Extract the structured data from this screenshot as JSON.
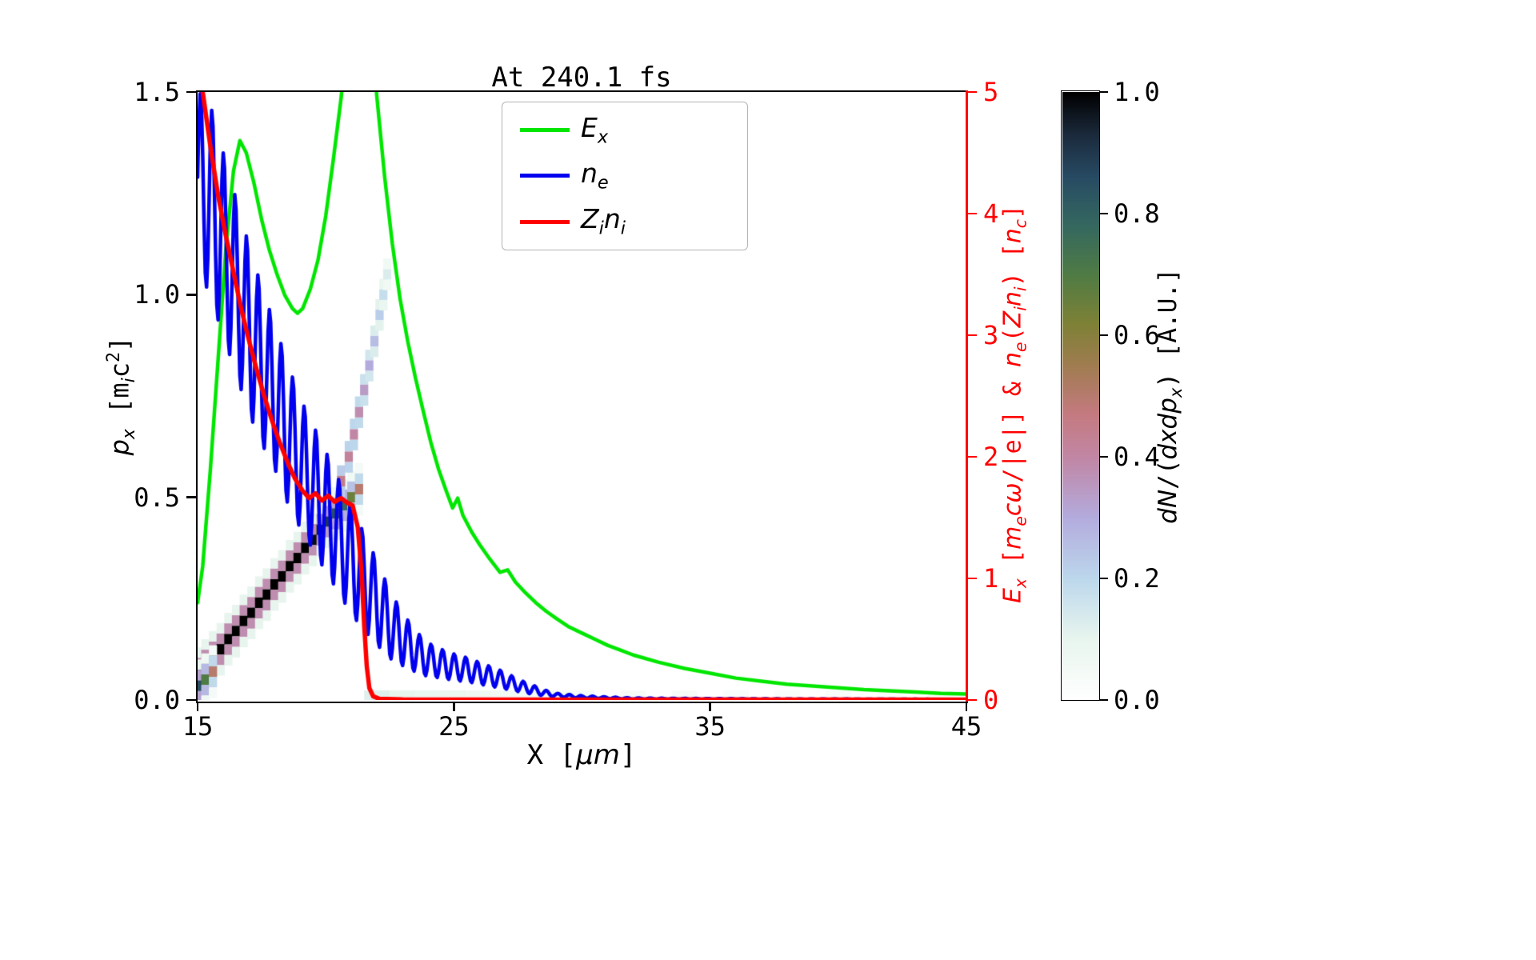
{
  "title": "At 240.1 fs",
  "axes": {
    "x": {
      "label_rich": [
        {
          "t": "X [",
          "s": ""
        },
        {
          "t": "μm",
          "s": "i"
        },
        {
          "t": "]",
          "s": ""
        }
      ],
      "ticks": [
        "15",
        "25",
        "35",
        "45"
      ],
      "tick_values": [
        15,
        25,
        35,
        45
      ],
      "lim": [
        15,
        45
      ]
    },
    "left": {
      "label_rich": [
        {
          "t": "p",
          "s": "i"
        },
        {
          "t": "x",
          "s": "subi"
        },
        {
          "t": " [m",
          "s": ""
        },
        {
          "t": "i",
          "s": "subi"
        },
        {
          "t": "c",
          "s": ""
        },
        {
          "t": "2",
          "s": "sup"
        },
        {
          "t": "]",
          "s": ""
        }
      ],
      "ticks": [
        "0.0",
        "0.5",
        "1.0",
        "1.5"
      ],
      "tick_values": [
        0,
        0.5,
        1,
        1.5
      ],
      "lim": [
        0,
        1.5
      ]
    },
    "right": {
      "color": "#ff0000",
      "label_rich": [
        {
          "t": "E",
          "s": "i"
        },
        {
          "t": "x",
          "s": "subi"
        },
        {
          "t": " [",
          "s": ""
        },
        {
          "t": "m",
          "s": "i"
        },
        {
          "t": "e",
          "s": "subi"
        },
        {
          "t": "c",
          "s": "i"
        },
        {
          "t": "ω",
          "s": "i"
        },
        {
          "t": "/|e|] & ",
          "s": ""
        },
        {
          "t": "n",
          "s": "i"
        },
        {
          "t": "e",
          "s": "subi"
        },
        {
          "t": "(",
          "s": ""
        },
        {
          "t": "Z",
          "s": "i"
        },
        {
          "t": "i",
          "s": "subi"
        },
        {
          "t": "n",
          "s": "i"
        },
        {
          "t": "i",
          "s": "subi"
        },
        {
          "t": ") [",
          "s": ""
        },
        {
          "t": "n",
          "s": "i"
        },
        {
          "t": "c",
          "s": "subi"
        },
        {
          "t": "]",
          "s": ""
        }
      ],
      "ticks": [
        "0",
        "1",
        "2",
        "3",
        "4",
        "5"
      ],
      "tick_values": [
        0,
        1,
        2,
        3,
        4,
        5
      ],
      "lim": [
        0,
        5
      ]
    }
  },
  "legend": {
    "items": [
      {
        "name": "Ex",
        "color": "#00e600",
        "label_rich": [
          {
            "t": "E",
            "s": "i"
          },
          {
            "t": "x",
            "s": "subi"
          }
        ]
      },
      {
        "name": "ne",
        "color": "#0000ee",
        "label_rich": [
          {
            "t": "n",
            "s": "i"
          },
          {
            "t": "e",
            "s": "subi"
          }
        ]
      },
      {
        "name": "Zini",
        "color": "#ff0000",
        "label_rich": [
          {
            "t": "Z",
            "s": "i"
          },
          {
            "t": "i",
            "s": "subi"
          },
          {
            "t": "n",
            "s": "i"
          },
          {
            "t": "i",
            "s": "subi"
          }
        ]
      }
    ]
  },
  "colorbar": {
    "label_rich": [
      {
        "t": "dN",
        "s": "i"
      },
      {
        "t": "/(",
        "s": ""
      },
      {
        "t": "dxdp",
        "s": "i"
      },
      {
        "t": "x",
        "s": "subi"
      },
      {
        "t": ") [A.U.]",
        "s": ""
      }
    ],
    "ticks": [
      "1.0",
      "0.8",
      "0.6",
      "0.4",
      "0.2",
      "0.0"
    ],
    "tick_values": [
      1,
      0.8,
      0.6,
      0.4,
      0.2,
      0
    ],
    "range": [
      0,
      1
    ],
    "stops": [
      {
        "v": 0.0,
        "c": "#ffffff"
      },
      {
        "v": 0.1,
        "c": "#e8f5ee"
      },
      {
        "v": 0.2,
        "c": "#bcd7ec"
      },
      {
        "v": 0.3,
        "c": "#b3abdd"
      },
      {
        "v": 0.4,
        "c": "#c186a4"
      },
      {
        "v": 0.47,
        "c": "#c47a80"
      },
      {
        "v": 0.55,
        "c": "#a07c50"
      },
      {
        "v": 0.62,
        "c": "#7d8136"
      },
      {
        "v": 0.7,
        "c": "#4f7b44"
      },
      {
        "v": 0.78,
        "c": "#35685f"
      },
      {
        "v": 0.86,
        "c": "#274b63"
      },
      {
        "v": 0.93,
        "c": "#1b2a3c"
      },
      {
        "v": 1.0,
        "c": "#000000"
      }
    ]
  },
  "chart_data": {
    "type": "line+heatmap",
    "title": "At 240.1 fs",
    "xlabel": "X [um]",
    "ylabel_left": "p_x [m_i c^2]",
    "ylabel_right": "E_x [m_e c omega/|e|] & n_e(Z_i n_i) [n_c]",
    "xlim": [
      15,
      45
    ],
    "ylim_left": [
      0,
      1.5
    ],
    "ylim_right": [
      0,
      5
    ],
    "legend_position": "upper center",
    "grid": false,
    "series": [
      {
        "name": "E_x",
        "axis": "right",
        "color": "#00e600",
        "width": 4.5,
        "points": [
          [
            15,
            0.8
          ],
          [
            15.2,
            1.1
          ],
          [
            15.5,
            1.9
          ],
          [
            15.8,
            2.8
          ],
          [
            16.1,
            3.7
          ],
          [
            16.4,
            4.35
          ],
          [
            16.65,
            4.6
          ],
          [
            16.9,
            4.5
          ],
          [
            17.2,
            4.25
          ],
          [
            17.5,
            3.95
          ],
          [
            17.8,
            3.7
          ],
          [
            18.1,
            3.5
          ],
          [
            18.4,
            3.33
          ],
          [
            18.7,
            3.22
          ],
          [
            18.9,
            3.18
          ],
          [
            19.1,
            3.22
          ],
          [
            19.4,
            3.38
          ],
          [
            19.7,
            3.62
          ],
          [
            20,
            3.98
          ],
          [
            20.3,
            4.45
          ],
          [
            20.6,
            4.95
          ],
          [
            20.8,
            5.4
          ],
          [
            21.1,
            5.75
          ],
          [
            21.5,
            5.8
          ],
          [
            21.8,
            5.4
          ],
          [
            22,
            4.95
          ],
          [
            22.3,
            4.3
          ],
          [
            22.6,
            3.75
          ],
          [
            22.9,
            3.3
          ],
          [
            23.2,
            2.95
          ],
          [
            23.5,
            2.65
          ],
          [
            23.8,
            2.38
          ],
          [
            24.1,
            2.12
          ],
          [
            24.4,
            1.9
          ],
          [
            24.7,
            1.72
          ],
          [
            24.95,
            1.58
          ],
          [
            25.15,
            1.66
          ],
          [
            25.35,
            1.52
          ],
          [
            25.7,
            1.38
          ],
          [
            26,
            1.28
          ],
          [
            26.4,
            1.16
          ],
          [
            26.8,
            1.05
          ],
          [
            27.1,
            1.07
          ],
          [
            27.4,
            0.97
          ],
          [
            27.8,
            0.88
          ],
          [
            28.2,
            0.8
          ],
          [
            28.6,
            0.73
          ],
          [
            29,
            0.67
          ],
          [
            29.5,
            0.6
          ],
          [
            30,
            0.55
          ],
          [
            30.5,
            0.5
          ],
          [
            31,
            0.45
          ],
          [
            31.5,
            0.41
          ],
          [
            32,
            0.37
          ],
          [
            33,
            0.31
          ],
          [
            34,
            0.26
          ],
          [
            35,
            0.22
          ],
          [
            36,
            0.18
          ],
          [
            37,
            0.155
          ],
          [
            38,
            0.13
          ],
          [
            39,
            0.115
          ],
          [
            40,
            0.1
          ],
          [
            41,
            0.085
          ],
          [
            42,
            0.075
          ],
          [
            43,
            0.065
          ],
          [
            44,
            0.055
          ],
          [
            45,
            0.05
          ]
        ]
      },
      {
        "name": "n_e",
        "axis": "right",
        "color": "#0000ee",
        "width": 4.5,
        "oscillation": {
          "period": 0.45,
          "phase": 0,
          "envelope_x": [
            15,
            15.5,
            16,
            16.5,
            17,
            17.5,
            18,
            18.5,
            19,
            19.5,
            20,
            20.5,
            21,
            21.5,
            22,
            22.5,
            23,
            23.5,
            24,
            24.5,
            25,
            25.5,
            26,
            26.5,
            27,
            27.5,
            28,
            28.5,
            29,
            30,
            31,
            32,
            34,
            38,
            45
          ],
          "mean": [
            4.3,
            4.1,
            3.75,
            3.4,
            3.05,
            2.75,
            2.5,
            2.2,
            1.95,
            1.75,
            1.55,
            1.35,
            1.15,
            0.97,
            0.8,
            0.62,
            0.5,
            0.4,
            0.33,
            0.3,
            0.27,
            0.25,
            0.22,
            0.19,
            0.16,
            0.12,
            0.09,
            0.06,
            0.04,
            0.025,
            0.018,
            0.012,
            0.01,
            0.007,
            0.005
          ],
          "amp": [
            0.72,
            0.8,
            0.76,
            0.73,
            0.7,
            0.65,
            0.6,
            0.58,
            0.54,
            0.52,
            0.5,
            0.47,
            0.45,
            0.4,
            0.35,
            0.28,
            0.22,
            0.17,
            0.14,
            0.12,
            0.11,
            0.1,
            0.09,
            0.08,
            0.07,
            0.05,
            0.04,
            0.025,
            0.015,
            0.01,
            0.007,
            0.005,
            0.003,
            0.002,
            0
          ]
        }
      },
      {
        "name": "Z_i n_i",
        "axis": "right",
        "color": "#ff0000",
        "width": 5.5,
        "points": [
          [
            15,
            5.4
          ],
          [
            15.2,
            5.0
          ],
          [
            15.5,
            4.55
          ],
          [
            15.8,
            4.15
          ],
          [
            16.1,
            3.82
          ],
          [
            16.4,
            3.52
          ],
          [
            16.7,
            3.22
          ],
          [
            17,
            2.96
          ],
          [
            17.3,
            2.72
          ],
          [
            17.6,
            2.5
          ],
          [
            17.9,
            2.3
          ],
          [
            18.2,
            2.12
          ],
          [
            18.5,
            1.96
          ],
          [
            18.8,
            1.82
          ],
          [
            19.1,
            1.72
          ],
          [
            19.35,
            1.66
          ],
          [
            19.6,
            1.7
          ],
          [
            19.85,
            1.64
          ],
          [
            20.1,
            1.68
          ],
          [
            20.35,
            1.63
          ],
          [
            20.6,
            1.66
          ],
          [
            20.85,
            1.62
          ],
          [
            21.05,
            1.6
          ],
          [
            21.25,
            1.42
          ],
          [
            21.4,
            1.05
          ],
          [
            21.5,
            0.62
          ],
          [
            21.6,
            0.28
          ],
          [
            21.7,
            0.1
          ],
          [
            21.85,
            0.03
          ],
          [
            22.1,
            0.01
          ],
          [
            23,
            0.005
          ],
          [
            45,
            0.004
          ]
        ]
      }
    ],
    "heatmap": {
      "quantity": "dN/(dxdp_x) [A.U.]",
      "value_range": [
        0,
        1
      ],
      "cell": {
        "dx": 0.32,
        "dp": 0.026
      },
      "band_main": [
        [
          15.0,
          0.065,
          1
        ],
        [
          15.3,
          0.085,
          1
        ],
        [
          15.6,
          0.105,
          1
        ],
        [
          15.9,
          0.125,
          1
        ],
        [
          16.2,
          0.15,
          1
        ],
        [
          16.5,
          0.17,
          1
        ],
        [
          16.8,
          0.195,
          1
        ],
        [
          17.1,
          0.215,
          1
        ],
        [
          17.4,
          0.24,
          1
        ],
        [
          17.7,
          0.26,
          1
        ],
        [
          18.0,
          0.285,
          1
        ],
        [
          18.3,
          0.305,
          1
        ],
        [
          18.6,
          0.33,
          1
        ],
        [
          18.9,
          0.35,
          1
        ],
        [
          19.2,
          0.375,
          1
        ],
        [
          19.5,
          0.395,
          0.98
        ],
        [
          19.8,
          0.42,
          0.95
        ],
        [
          20.1,
          0.44,
          0.9
        ],
        [
          20.4,
          0.46,
          0.85
        ],
        [
          20.7,
          0.48,
          0.78
        ],
        [
          21.0,
          0.5,
          0.65
        ],
        [
          21.3,
          0.52,
          0.5
        ],
        [
          15.0,
          0.035,
          0.85
        ],
        [
          15.3,
          0.05,
          0.7
        ],
        [
          15.6,
          0.07,
          0.5
        ]
      ],
      "band_upper": [
        [
          20.6,
          0.54,
          0.45
        ],
        [
          20.9,
          0.6,
          0.42
        ],
        [
          21.1,
          0.655,
          0.4
        ],
        [
          21.3,
          0.71,
          0.38
        ],
        [
          21.5,
          0.765,
          0.34
        ],
        [
          21.7,
          0.825,
          0.3
        ],
        [
          21.9,
          0.885,
          0.26
        ],
        [
          22.1,
          0.95,
          0.22
        ],
        [
          22.25,
          1.0,
          0.18
        ],
        [
          22.4,
          1.05,
          0.13
        ]
      ],
      "bottom_trace": [
        [
          22,
          0.12
        ],
        [
          23,
          0.1
        ],
        [
          24,
          0.09
        ],
        [
          25,
          0.08
        ],
        [
          26,
          0.07
        ],
        [
          27,
          0.06
        ],
        [
          28,
          0.06
        ],
        [
          29,
          0.05
        ],
        [
          30,
          0.05
        ],
        [
          32,
          0.04
        ],
        [
          34,
          0.04
        ],
        [
          36,
          0.03
        ],
        [
          38,
          0.03
        ],
        [
          40,
          0.03
        ],
        [
          42,
          0.02
        ],
        [
          44,
          0.02
        ]
      ]
    }
  }
}
